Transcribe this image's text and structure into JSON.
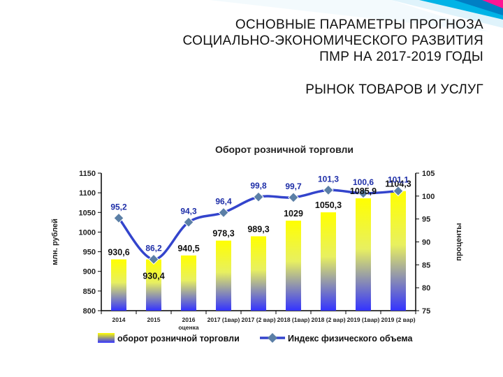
{
  "slide": {
    "title_lines": [
      "ОСНОВНЫЕ ПАРАМЕТРЫ ПРОГНОЗА",
      "СОЦИАЛЬНО-ЭКОНОМИЧЕСКОГО РАЗВИТИЯ",
      "ПМР НА 2017-2019 ГОДЫ"
    ],
    "subtitle": "РЫНОК ТОВАРОВ И УСЛУГ"
  },
  "chart_data": {
    "type": "bar",
    "title": "Оборот розничной торговли",
    "categories": [
      "2014",
      "2015",
      "2016 оценка",
      "2017 (1вар)",
      "2017 (2 вар)",
      "2018 (1вар)",
      "2018 (2 вар)",
      "2019 (1вар)",
      "2019 (2 вар)"
    ],
    "category_labels": [
      "2014",
      "2015",
      "2016",
      "2017 (1вар)",
      "2017 (2 вар)",
      "2018 (1вар)",
      "2018 (2 вар)",
      "2019 (1вар)",
      "2019 (2 вар)"
    ],
    "category_sublabels": [
      "",
      "",
      "оценка",
      "",
      "",
      "",
      "",
      "",
      ""
    ],
    "ylabel": "млн. рублей",
    "ylabel_right": "проценты",
    "ylim": [
      800,
      1150
    ],
    "yticks": [
      800,
      850,
      900,
      950,
      1000,
      1050,
      1100,
      1150
    ],
    "ylim_right": [
      75,
      105
    ],
    "yticks_right": [
      75,
      80,
      85,
      90,
      95,
      100,
      105
    ],
    "series": [
      {
        "name": "оборот розничной торговли",
        "kind": "bar",
        "axis": "left",
        "values": [
          930.6,
          930.4,
          940.5,
          978.3,
          989.3,
          1029,
          1050.3,
          1085.9,
          1104.3
        ],
        "labels": [
          "930,6",
          "930,4",
          "940,5",
          "978,3",
          "989,3",
          "1029",
          "1050,3",
          "1085,9",
          "1104,3"
        ],
        "color_top": "#ffff00",
        "color_bottom": "#3333ff"
      },
      {
        "name": "Индекс физического объема",
        "kind": "line",
        "axis": "right",
        "values": [
          95.2,
          86.2,
          94.3,
          96.4,
          99.8,
          99.7,
          101.3,
          100.6,
          101.1
        ],
        "labels": [
          "95,2",
          "86,2",
          "94,3",
          "96,4",
          "99,8",
          "99,7",
          "101,3",
          "100,6",
          "101,1"
        ],
        "color": "#3344cc",
        "marker_color": "#5b7fa6",
        "label_color": "#1f2fa8"
      }
    ],
    "grid": false,
    "legend_position": "bottom"
  }
}
